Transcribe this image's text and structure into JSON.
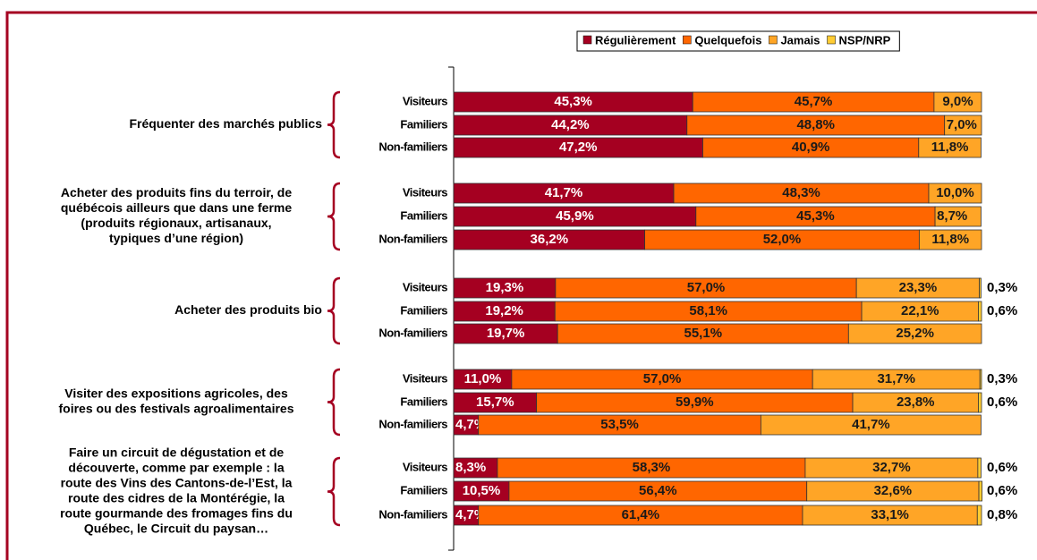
{
  "chart_data": {
    "type": "bar",
    "stacked": true,
    "orientation": "horizontal",
    "xlim": [
      0,
      100
    ],
    "groups": [
      [
        "Fréquenter des marchés publics"
      ],
      [
        "Acheter des produits fins du terroir, de",
        "québécois ailleurs que dans une ferme",
        "(produits régionaux, artisanaux,",
        "typiques d’une région)"
      ],
      [
        "Acheter des produits bio"
      ],
      [
        "Visiter des expositions agricoles, des",
        "foires ou des festivals agroalimentaires"
      ],
      [
        "Faire un circuit de dégustation et de",
        "découverte, comme par exemple : la",
        "route des Vins des Cantons-de-l’Est, la",
        "route des cidres de la Montérégie, la",
        "route gourmande des fromages fins du",
        "Québec, le Circuit du paysan…"
      ]
    ],
    "categories": [
      "Visiteurs",
      "Familiers",
      "Non-familiers",
      "Visiteurs",
      "Familiers",
      "Non-familiers",
      "Visiteurs",
      "Familiers",
      "Non-familiers",
      "Visiteurs",
      "Familiers",
      "Non-familiers",
      "Visiteurs",
      "Familiers",
      "Non-familiers"
    ],
    "series": [
      {
        "name": "Régulièrement",
        "color": "#a50021",
        "values": [
          45.3,
          44.2,
          47.2,
          41.7,
          45.9,
          36.2,
          19.3,
          19.2,
          19.7,
          11.0,
          15.7,
          4.7,
          8.3,
          10.5,
          4.7
        ],
        "value_labels": [
          "45,3%",
          "44,2%",
          "47,2%",
          "41,7%",
          "45,9%",
          "36,2%",
          "19,3%",
          "19,2%",
          "19,7%",
          "11,0%",
          "15,7%",
          "4,7%",
          "8,3%",
          "10,5%",
          "4,7%"
        ]
      },
      {
        "name": "Quelquefois",
        "color": "#ff6600",
        "values": [
          45.7,
          48.8,
          40.9,
          48.3,
          45.3,
          52.0,
          57.0,
          58.1,
          55.1,
          57.0,
          59.9,
          53.5,
          58.3,
          56.4,
          61.4
        ],
        "value_labels": [
          "45,7%",
          "48,8%",
          "40,9%",
          "48,3%",
          "45,3%",
          "52,0%",
          "57,0%",
          "58,1%",
          "55,1%",
          "57,0%",
          "59,9%",
          "53,5%",
          "58,3%",
          "56,4%",
          "61,4%"
        ]
      },
      {
        "name": "Jamais",
        "color": "#ffa526",
        "values": [
          9.0,
          7.0,
          11.8,
          10.0,
          8.7,
          11.8,
          23.3,
          22.1,
          25.2,
          31.7,
          23.8,
          41.7,
          32.7,
          32.6,
          33.1
        ],
        "value_labels": [
          "9,0%",
          "7,0%",
          "11,8%",
          "10,0%",
          "8,7%",
          "11,8%",
          "23,3%",
          "22,1%",
          "25,2%",
          "31,7%",
          "23,8%",
          "41,7%",
          "32,7%",
          "32,6%",
          "33,1%"
        ]
      },
      {
        "name": "NSP/NRP",
        "color": "#ffcc33",
        "values": [
          null,
          null,
          null,
          null,
          null,
          null,
          0.3,
          0.6,
          null,
          0.3,
          0.6,
          null,
          0.6,
          0.6,
          0.8
        ],
        "value_labels": [
          null,
          null,
          null,
          null,
          null,
          null,
          "0,3%",
          "0,6%",
          null,
          "0,3%",
          "0,6%",
          null,
          "0,6%",
          "0,6%",
          "0,8%"
        ]
      }
    ],
    "legend": "top-right"
  }
}
